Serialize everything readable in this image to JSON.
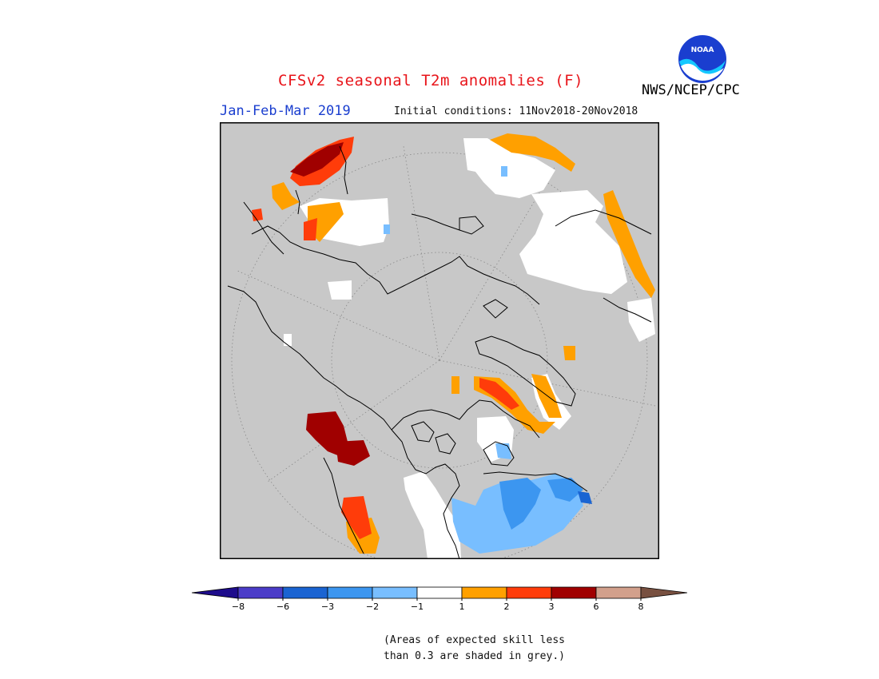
{
  "header": {
    "title": "CFSv2 seasonal T2m anomalies (F)",
    "period": "Jan-Feb-Mar 2019",
    "initial_conditions": "Initial conditions: 11Nov2018-20Nov2018",
    "agency": "NWS/NCEP/CPC",
    "logo_text": "NOAA"
  },
  "map": {
    "projection": "north polar stereographic",
    "background_color": "#c8c8c8"
  },
  "legend": {
    "colors": [
      "#1e0c8c",
      "#4b3cc8",
      "#1a64d2",
      "#3c96f0",
      "#78beff",
      "#ffffff",
      "#ffa000",
      "#ff3c0a",
      "#a00000",
      "#d2a08c",
      "#785040"
    ],
    "labels": [
      "−8",
      "−6",
      "−3",
      "−2",
      "−1",
      "1",
      "2",
      "3",
      "6",
      "8"
    ]
  },
  "footnote": {
    "line1": "(Areas of expected skill less",
    "line2": "than 0.3 are shaded in grey.)"
  }
}
